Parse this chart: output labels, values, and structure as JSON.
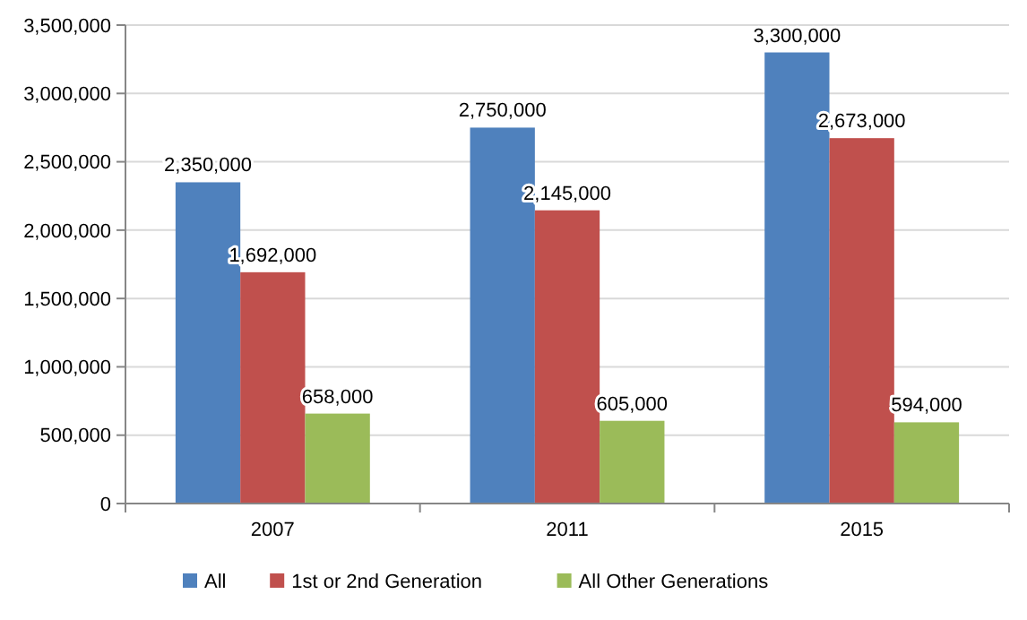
{
  "chart_data": {
    "type": "bar",
    "categories": [
      "2007",
      "2011",
      "2015"
    ],
    "series": [
      {
        "name": "All",
        "color": "#4f81bd",
        "values": [
          2350000,
          2750000,
          3300000
        ],
        "value_labels": [
          "2,350,000",
          "2,750,000",
          "3,300,000"
        ]
      },
      {
        "name": "1st or 2nd Generation",
        "color": "#c0504d",
        "values": [
          1692000,
          2145000,
          2673000
        ],
        "value_labels": [
          "1,692,000",
          "2,145,000",
          "2,673,000"
        ]
      },
      {
        "name": "All Other Generations",
        "color": "#9bbb59",
        "values": [
          658000,
          605000,
          594000
        ],
        "value_labels": [
          "658,000",
          "605,000",
          "594,000"
        ]
      }
    ],
    "ylim": [
      0,
      3500000
    ],
    "yticks": [
      {
        "value": 0,
        "label": "0"
      },
      {
        "value": 500000,
        "label": "500,000"
      },
      {
        "value": 1000000,
        "label": "1,000,000"
      },
      {
        "value": 1500000,
        "label": "1,500,000"
      },
      {
        "value": 2000000,
        "label": "2,000,000"
      },
      {
        "value": 2500000,
        "label": "2,500,000"
      },
      {
        "value": 3000000,
        "label": "3,000,000"
      },
      {
        "value": 3500000,
        "label": "3,500,000"
      }
    ],
    "grid": "y",
    "legend": "bottom"
  }
}
